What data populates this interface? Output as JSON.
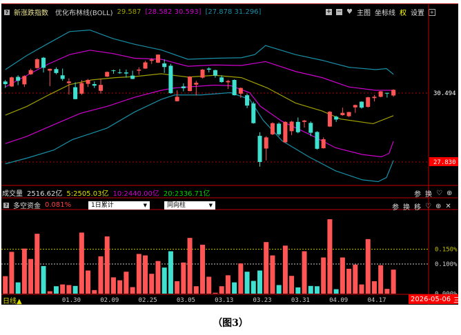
{
  "header": {
    "title": "新涨跌指数",
    "indicator": "优化布林线(BOLL)",
    "mid_value": "29.587",
    "inner_band": "[28.582 30.593]",
    "outer_band": "[27.878 31.296]",
    "buttons": [
      "主图",
      "坐标线",
      "权",
      "设置"
    ]
  },
  "volume": {
    "label": "成交量",
    "value": "2516.62亿",
    "ma5": "5:2505.03亿",
    "ma10": "10:2440.00亿",
    "ma20": "20:2336.71亿",
    "buttons": [
      "参",
      "换"
    ]
  },
  "indicator": {
    "label": "多空资金",
    "value": "0.081%",
    "select1": "1日累计",
    "select2": "同向柱",
    "buttons": [
      "参",
      "换",
      "移"
    ]
  },
  "footer": {
    "period": "日线▲",
    "date": "2026-05-06",
    "weekday": "三"
  },
  "caption": "（图3）",
  "colors": {
    "up": "#ff5555",
    "down": "#40e0d0",
    "mid": "#a0a000",
    "inner": "#d000d0",
    "outer": "#1890a8",
    "grid": "#c00000"
  },
  "chart_data": [
    {
      "type": "candlestick",
      "title": "新涨跌指数 优化布林线(BOLL)",
      "y_ticks": [
        "30.494",
        "27.830"
      ],
      "y_tick_values": [
        30.494,
        27.83
      ],
      "ohlc": [
        [
          30.94,
          31.0,
          30.69,
          30.84
        ],
        [
          30.75,
          31.13,
          30.73,
          31.1
        ],
        [
          31.12,
          31.18,
          30.8,
          30.97
        ],
        [
          30.83,
          31.18,
          30.73,
          31.15
        ],
        [
          31.22,
          31.44,
          31.2,
          31.38
        ],
        [
          31.46,
          31.84,
          31.44,
          31.8
        ],
        [
          31.86,
          31.89,
          31.29,
          31.47
        ],
        [
          31.36,
          31.44,
          30.76,
          31.43
        ],
        [
          31.42,
          31.49,
          31.22,
          31.27
        ],
        [
          31.18,
          31.44,
          30.97,
          31.04
        ],
        [
          30.88,
          31.06,
          30.44,
          30.94
        ],
        [
          30.72,
          30.91,
          30.25,
          30.26
        ],
        [
          30.47,
          31.0,
          30.42,
          30.88
        ],
        [
          30.85,
          31.04,
          30.73,
          31.0
        ],
        [
          30.84,
          30.94,
          30.69,
          30.78
        ],
        [
          30.58,
          31.06,
          30.47,
          30.81
        ],
        [
          31.13,
          31.33,
          31.11,
          31.31
        ],
        [
          31.37,
          31.4,
          31.24,
          31.35
        ],
        [
          31.29,
          31.42,
          31.24,
          31.27
        ],
        [
          31.29,
          31.4,
          31.09,
          31.25
        ],
        [
          31.17,
          31.36,
          31.03,
          31.04
        ],
        [
          31.36,
          31.49,
          31.2,
          31.4
        ],
        [
          31.44,
          31.74,
          31.43,
          31.68
        ],
        [
          31.74,
          31.84,
          31.62,
          31.79
        ],
        [
          31.67,
          31.99,
          31.65,
          31.98
        ],
        [
          31.64,
          31.8,
          31.27,
          31.5
        ],
        [
          31.55,
          31.62,
          30.47,
          30.49
        ],
        [
          30.18,
          30.6,
          30.17,
          30.35
        ],
        [
          30.75,
          30.87,
          30.56,
          30.68
        ],
        [
          30.57,
          31.15,
          30.56,
          31.13
        ],
        [
          30.82,
          30.97,
          30.4,
          30.89
        ],
        [
          31.09,
          31.42,
          31.06,
          31.4
        ],
        [
          31.44,
          31.49,
          31.29,
          31.4
        ],
        [
          31.38,
          31.4,
          31.09,
          31.17
        ],
        [
          31.1,
          31.18,
          30.89,
          30.92
        ],
        [
          30.91,
          31.0,
          30.65,
          30.96
        ],
        [
          31.0,
          31.02,
          30.4,
          30.41
        ],
        [
          30.47,
          30.71,
          30.31,
          30.69
        ],
        [
          30.41,
          30.47,
          29.91,
          30.01
        ],
        [
          30.09,
          30.16,
          29.31,
          29.33
        ],
        [
          28.84,
          28.98,
          27.65,
          27.83
        ],
        [
          28.35,
          28.83,
          27.89,
          28.78
        ],
        [
          28.9,
          29.36,
          28.87,
          29.33
        ],
        [
          29.31,
          29.36,
          28.83,
          28.9
        ],
        [
          28.59,
          29.4,
          28.58,
          29.38
        ],
        [
          29.02,
          29.42,
          28.87,
          29.39
        ],
        [
          29.38,
          29.55,
          28.94,
          28.98
        ],
        [
          29.38,
          29.46,
          29.16,
          29.43
        ],
        [
          29.34,
          29.4,
          28.83,
          28.96
        ],
        [
          28.99,
          29.02,
          28.31,
          28.34
        ],
        [
          28.36,
          28.78,
          28.35,
          28.71
        ],
        [
          29.2,
          29.8,
          29.18,
          29.77
        ],
        [
          29.58,
          29.62,
          29.38,
          29.47
        ],
        [
          29.64,
          29.93,
          29.62,
          29.73
        ],
        [
          29.6,
          29.77,
          29.57,
          29.76
        ],
        [
          29.94,
          30.05,
          29.73,
          30.03
        ],
        [
          30.16,
          30.18,
          29.89,
          29.93
        ],
        [
          29.96,
          30.35,
          29.93,
          30.33
        ],
        [
          30.3,
          30.42,
          30.17,
          30.35
        ],
        [
          30.35,
          30.57,
          30.33,
          30.56
        ],
        [
          30.5,
          30.51,
          30.32,
          30.49
        ],
        [
          30.4,
          30.64,
          30.35,
          30.62
        ]
      ],
      "bands": {
        "outer_upper": [
          [
            1,
            31.4
          ],
          [
            4.4,
            31.95
          ],
          [
            7.8,
            32.42
          ],
          [
            11.1,
            32.87
          ],
          [
            14.3,
            32.93
          ],
          [
            17.9,
            32.6
          ],
          [
            21.3,
            32.38
          ],
          [
            25.5,
            32.16
          ],
          [
            29.7,
            31.8
          ],
          [
            33.9,
            31.84
          ],
          [
            38.1,
            31.86
          ],
          [
            40.2,
            31.98
          ],
          [
            41.9,
            32.33
          ],
          [
            46.6,
            31.98
          ],
          [
            50.8,
            31.76
          ],
          [
            55,
            31.49
          ],
          [
            59.2,
            31.4
          ],
          [
            60.9,
            31.44
          ],
          [
            62,
            31.22
          ]
        ],
        "inner_upper": [
          [
            1,
            30.73
          ],
          [
            4.4,
            31.18
          ],
          [
            7.8,
            31.62
          ],
          [
            11.1,
            31.98
          ],
          [
            14.3,
            32.15
          ],
          [
            17.9,
            32.02
          ],
          [
            21.3,
            31.84
          ],
          [
            25.5,
            31.8
          ],
          [
            29.7,
            31.53
          ],
          [
            33.9,
            31.58
          ],
          [
            38.1,
            31.56
          ],
          [
            41.9,
            31.71
          ],
          [
            46.6,
            31.33
          ],
          [
            50.8,
            31.09
          ],
          [
            55,
            30.73
          ],
          [
            59.2,
            30.6
          ],
          [
            62,
            30.6
          ]
        ],
        "mid": [
          [
            1,
            29.64
          ],
          [
            4.4,
            29.98
          ],
          [
            7.8,
            30.42
          ],
          [
            11.1,
            30.82
          ],
          [
            14.5,
            31.0
          ],
          [
            18.3,
            31.09
          ],
          [
            21.3,
            31.13
          ],
          [
            25.5,
            31.24
          ],
          [
            29.7,
            31.11
          ],
          [
            33.9,
            31.18
          ],
          [
            38.1,
            31.09
          ],
          [
            42.2,
            30.69
          ],
          [
            46.6,
            30.11
          ],
          [
            50.8,
            29.8
          ],
          [
            53.7,
            29.49
          ],
          [
            58.8,
            29.31
          ],
          [
            62,
            29.62
          ]
        ],
        "inner_lower": [
          [
            1,
            28.54
          ],
          [
            4.4,
            28.82
          ],
          [
            8.6,
            29.27
          ],
          [
            12.8,
            29.71
          ],
          [
            17,
            29.98
          ],
          [
            21.3,
            30.33
          ],
          [
            25.5,
            30.6
          ],
          [
            27.6,
            30.69
          ],
          [
            29.7,
            30.73
          ],
          [
            33.9,
            30.8
          ],
          [
            36.4,
            30.78
          ],
          [
            39.4,
            30.51
          ],
          [
            41.1,
            29.98
          ],
          [
            44.5,
            29.4
          ],
          [
            48.7,
            28.91
          ],
          [
            52.9,
            28.38
          ],
          [
            57.1,
            28.12
          ],
          [
            60.1,
            28.03
          ],
          [
            61.3,
            28.16
          ],
          [
            62,
            28.63
          ]
        ],
        "outer_lower": [
          [
            1,
            27.76
          ],
          [
            4.4,
            27.98
          ],
          [
            8.6,
            28.29
          ],
          [
            11.5,
            28.69
          ],
          [
            17,
            29.14
          ],
          [
            21.3,
            29.76
          ],
          [
            25.5,
            30.25
          ],
          [
            27.6,
            30.42
          ],
          [
            31.8,
            30.42
          ],
          [
            36.4,
            30.51
          ],
          [
            39.4,
            30.25
          ],
          [
            41.5,
            29.45
          ],
          [
            44.5,
            28.65
          ],
          [
            48.7,
            28.03
          ],
          [
            52.9,
            27.49
          ],
          [
            57.1,
            27.14
          ],
          [
            59.6,
            27.07
          ],
          [
            60.9,
            27.23
          ],
          [
            62,
            27.89
          ]
        ]
      },
      "x_tick_labels": [
        "01.30",
        "02.09",
        "02.25",
        "03.05",
        "03.13",
        "03.23",
        "03.31",
        "04.09",
        "04.17"
      ],
      "x_tick_index": [
        11,
        17,
        23,
        29,
        35,
        41,
        47,
        53,
        59
      ]
    },
    {
      "type": "bar",
      "title": "多空资金",
      "y_ticks": [
        "0.150%",
        "0.100%",
        "0.000%"
      ],
      "y_tick_values": [
        0.15,
        0.1,
        0
      ],
      "unit": "%",
      "values": [
        0.059,
        0.141,
        0.038,
        0.152,
        0.117,
        0.202,
        0.093,
        0.008,
        0.025,
        0.031,
        0.029,
        0.026,
        0.206,
        0.078,
        0.012,
        0.126,
        0.193,
        0.055,
        0.045,
        0.074,
        0.022,
        0.134,
        0.129,
        0.067,
        0.11,
        0.088,
        0.143,
        0.042,
        0.105,
        0.188,
        0.025,
        0.165,
        0.057,
        0.003,
        0.025,
        0.062,
        0.038,
        0.102,
        0.074,
        0.043,
        0.078,
        0.174,
        0.129,
        0.029,
        0.162,
        0.06,
        0.021,
        0.143,
        0.026,
        0.025,
        0.122,
        0.251,
        0.015,
        0.122,
        0.084,
        0.098,
        0.031,
        0.184,
        0.042,
        0.096,
        0.016,
        0.081
      ],
      "colors": "rrcrrrcrcrrcrrrrrrrrrrrrrccrrrrrrrrrcrcccrrcrrcrccrrcrrrrrrrr"
    }
  ]
}
